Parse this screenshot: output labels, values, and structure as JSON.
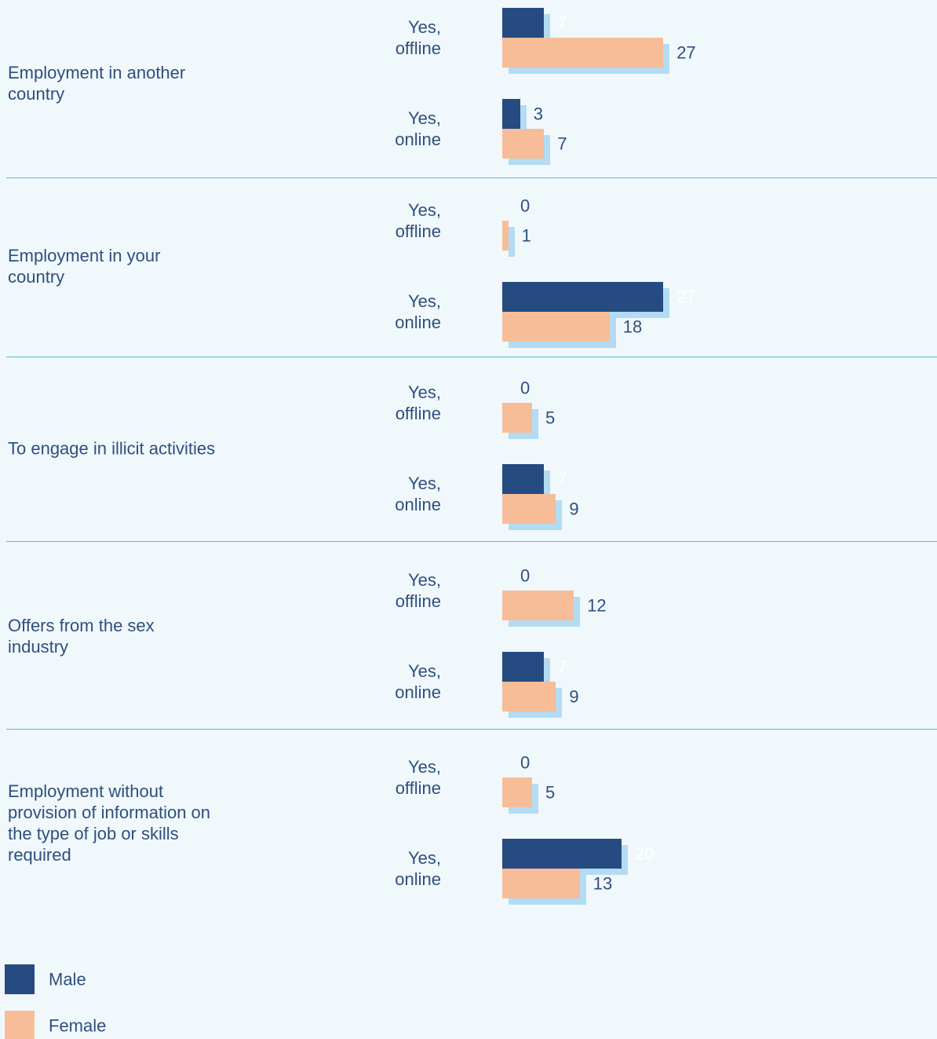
{
  "chart_data": {
    "type": "grouped-hbar",
    "groups": [
      "Employment in another country",
      "Employment in your country",
      "To engage in illicit activities",
      "Offers from the sex industry",
      "Employment without provision of information on the type of job or skills required"
    ],
    "categories": [
      "Yes, offline",
      "Yes, online",
      "Yes, offline",
      "Yes, online",
      "Yes, offline",
      "Yes, online",
      "Yes, offline",
      "Yes, online",
      "Yes, offline",
      "Yes, online"
    ],
    "series": [
      {
        "name": "Male",
        "color": "#264b80",
        "values": [
          7,
          3,
          0,
          27,
          0,
          7,
          0,
          7,
          0,
          20
        ]
      },
      {
        "name": "Female",
        "color": "#f6bd98",
        "values": [
          27,
          7,
          1,
          18,
          5,
          9,
          12,
          9,
          5,
          13
        ]
      }
    ]
  }
}
